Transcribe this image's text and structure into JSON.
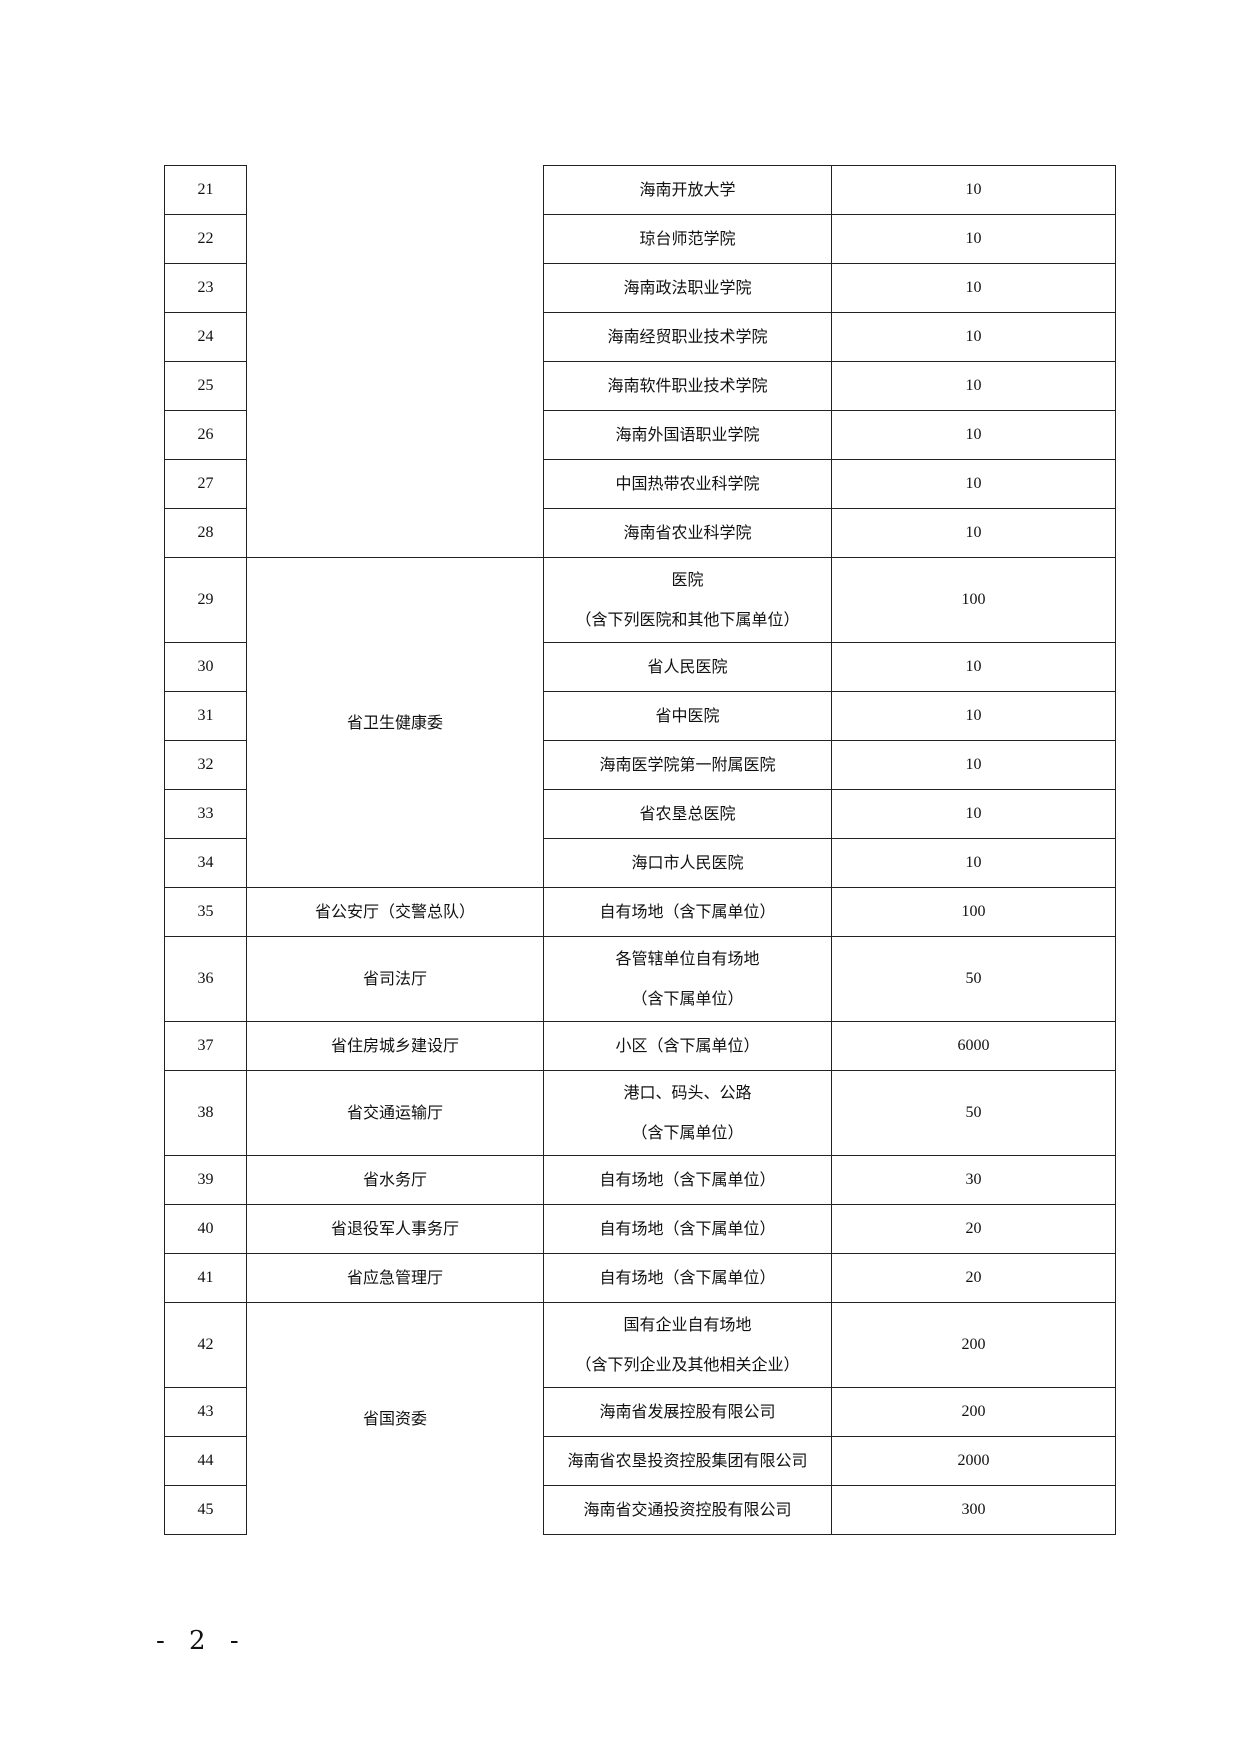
{
  "rows": [
    {
      "no": "21",
      "item": "海南开放大学",
      "count": "10"
    },
    {
      "no": "22",
      "item": "琼台师范学院",
      "count": "10"
    },
    {
      "no": "23",
      "item": "海南政法职业学院",
      "count": "10"
    },
    {
      "no": "24",
      "item": "海南经贸职业技术学院",
      "count": "10"
    },
    {
      "no": "25",
      "item": "海南软件职业技术学院",
      "count": "10"
    },
    {
      "no": "26",
      "item": "海南外国语职业学院",
      "count": "10"
    },
    {
      "no": "27",
      "item": "中国热带农业科学院",
      "count": "10"
    },
    {
      "no": "28",
      "item": "海南省农业科学院",
      "count": "10"
    },
    {
      "no": "29",
      "item": "医院",
      "item2": "（含下列医院和其他下属单位）",
      "count": "100"
    },
    {
      "no": "30",
      "item": "省人民医院",
      "count": "10"
    },
    {
      "no": "31",
      "item": "省中医院",
      "count": "10"
    },
    {
      "no": "32",
      "item": "海南医学院第一附属医院",
      "count": "10"
    },
    {
      "no": "33",
      "item": "省农垦总医院",
      "count": "10"
    },
    {
      "no": "34",
      "item": "海口市人民医院",
      "count": "10"
    },
    {
      "no": "35",
      "dept": "省公安厅（交警总队）",
      "item": "自有场地（含下属单位）",
      "count": "100"
    },
    {
      "no": "36",
      "dept": "省司法厅",
      "item": "各管辖单位自有场地",
      "item2": "（含下属单位）",
      "count": "50"
    },
    {
      "no": "37",
      "dept": "省住房城乡建设厅",
      "item": "小区（含下属单位）",
      "count": "6000"
    },
    {
      "no": "38",
      "dept": "省交通运输厅",
      "item": "港口、码头、公路",
      "item2": "（含下属单位）",
      "count": "50"
    },
    {
      "no": "39",
      "dept": "省水务厅",
      "item": "自有场地（含下属单位）",
      "count": "30"
    },
    {
      "no": "40",
      "dept": "省退役军人事务厅",
      "item": "自有场地（含下属单位）",
      "count": "20"
    },
    {
      "no": "41",
      "dept": "省应急管理厅",
      "item": "自有场地（含下属单位）",
      "count": "20"
    },
    {
      "no": "42",
      "item": "国有企业自有场地",
      "item2": "（含下列企业及其他相关企业）",
      "count": "200"
    },
    {
      "no": "43",
      "item": "海南省发展控股有限公司",
      "count": "200"
    },
    {
      "no": "44",
      "item": "海南省农垦投资控股集团有限公司",
      "count": "2000"
    },
    {
      "no": "45",
      "item": "海南省交通投资控股有限公司",
      "count": "300"
    }
  ],
  "groups": {
    "health": "省卫生健康委",
    "sasac": "省国资委"
  },
  "page_number": "- 2 -"
}
